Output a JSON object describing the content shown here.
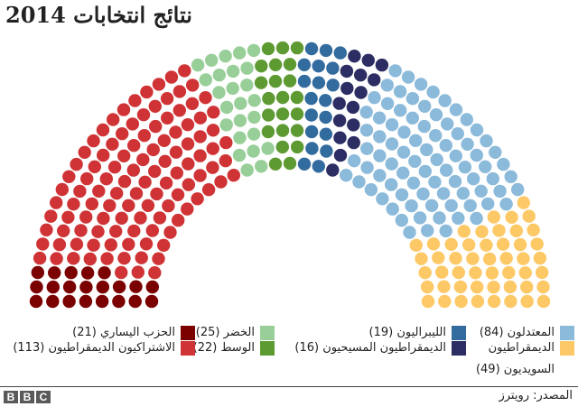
{
  "title": "نتائج انتخابات 2014",
  "chart_data": {
    "type": "parliament",
    "title": "نتائج انتخابات 2014",
    "total_seats": 349,
    "rows": 8,
    "seats_per_row": [
      31,
      34,
      38,
      42,
      46,
      49,
      53,
      56
    ],
    "parties": [
      {
        "name": "الحزب اليساري",
        "seats": 21,
        "color": "#7b0000"
      },
      {
        "name": "الاشتراكيون الديمقراطيون",
        "seats": 113,
        "color": "#d03335"
      },
      {
        "name": "الخضر",
        "seats": 25,
        "color": "#98cf98"
      },
      {
        "name": "الوسط",
        "seats": 22,
        "color": "#5e9a32"
      },
      {
        "name": "الليبراليون",
        "seats": 19,
        "color": "#326b9e"
      },
      {
        "name": "الديمقراطيون المسيحيون",
        "seats": 16,
        "color": "#2c2d62"
      },
      {
        "name": "المعتدلون",
        "seats": 84,
        "color": "#8bbadb"
      },
      {
        "name": "الديمقراطيون السويديون",
        "seats": 49,
        "color": "#fdc967"
      }
    ]
  },
  "legend": {
    "left_party": "الحزب اليساري (21)",
    "social_democrats": "الاشتراكيون الديمقراطيون (113)",
    "greens": "الخضر (25)",
    "centre": "الوسط (22)",
    "liberals": "الليبراليون (19)",
    "christian_democrats": "الديمقراطيون المسيحيون (16)",
    "moderates": "المعتدلون (84)",
    "sweden_democrats": "الديمقراطيون السويديون (49)"
  },
  "footer": {
    "logo": [
      "B",
      "B",
      "C"
    ],
    "source": "المصدر: رويترز"
  }
}
